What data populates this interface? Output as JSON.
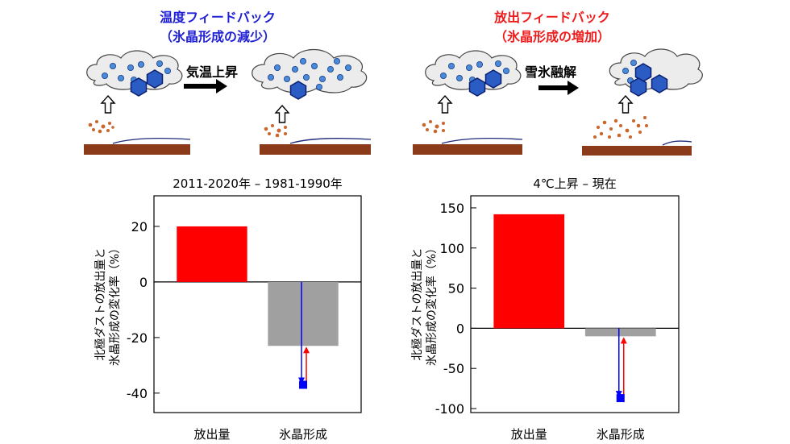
{
  "colors": {
    "temperature": "#1f1fd6",
    "emission": "#ee1c1c",
    "bar_emission": "#ff0000",
    "bar_ice": "#a0a0a0",
    "marker": "#0000ff",
    "soil": "#8b3a1a"
  },
  "left_panel": {
    "title_line1": "温度フィードバック",
    "title_line2": "（氷晶形成の減少）",
    "arrow_label": "気温上昇"
  },
  "right_panel": {
    "title_line1": "放出フィードバック",
    "title_line2": "（氷晶形成の増加）",
    "arrow_label": "雪氷融解"
  },
  "chart_data": [
    {
      "type": "bar",
      "title": "2011-2020年 – 1981-1990年",
      "ylabel_line1": "北極ダストの放出量と",
      "ylabel_line2": "氷晶形成の変化率（%）",
      "categories": [
        "放出量",
        "氷晶形成"
      ],
      "values": [
        20,
        -23
      ],
      "ylim": [
        -47,
        31
      ],
      "yticks": [
        20,
        0,
        -20,
        -40
      ],
      "annotation": {
        "marker_value": -37,
        "blue_arrow": [
          0,
          -37
        ],
        "red_arrow": [
          -37,
          -23
        ]
      }
    },
    {
      "type": "bar",
      "title": "4℃上昇 – 現在",
      "ylabel_line1": "北極ダストの放出量と",
      "ylabel_line2": "氷晶形成の変化率（%）",
      "categories": [
        "放出量",
        "氷晶形成"
      ],
      "values": [
        142,
        -10
      ],
      "ylim": [
        -105,
        165
      ],
      "yticks": [
        150,
        100,
        50,
        0,
        -50,
        -100
      ],
      "annotation": {
        "marker_value": -87,
        "blue_arrow": [
          0,
          -87
        ],
        "red_arrow": [
          -87,
          -10
        ]
      }
    }
  ]
}
